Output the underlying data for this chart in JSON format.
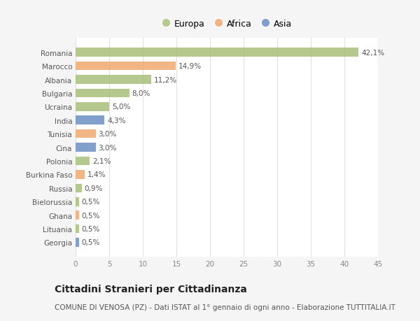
{
  "countries": [
    "Romania",
    "Marocco",
    "Albania",
    "Bulgaria",
    "Ucraina",
    "India",
    "Tunisia",
    "Cina",
    "Polonia",
    "Burkina Faso",
    "Russia",
    "Bielorussia",
    "Ghana",
    "Lituania",
    "Georgia"
  ],
  "values": [
    42.1,
    14.9,
    11.2,
    8.0,
    5.0,
    4.3,
    3.0,
    3.0,
    2.1,
    1.4,
    0.9,
    0.5,
    0.5,
    0.5,
    0.5
  ],
  "labels": [
    "42,1%",
    "14,9%",
    "11,2%",
    "8,0%",
    "5,0%",
    "4,3%",
    "3,0%",
    "3,0%",
    "2,1%",
    "1,4%",
    "0,9%",
    "0,5%",
    "0,5%",
    "0,5%",
    "0,5%"
  ],
  "continents": [
    "Europa",
    "Africa",
    "Europa",
    "Europa",
    "Europa",
    "Asia",
    "Africa",
    "Asia",
    "Europa",
    "Africa",
    "Europa",
    "Europa",
    "Africa",
    "Europa",
    "Asia"
  ],
  "continent_colors": {
    "Europa": "#a8c07a",
    "Africa": "#f0a870",
    "Asia": "#6b8fc4"
  },
  "bg_color": "#f5f5f5",
  "plot_bg_color": "#ffffff",
  "title": "Cittadini Stranieri per Cittadinanza",
  "subtitle": "COMUNE DI VENOSA (PZ) - Dati ISTAT al 1° gennaio di ogni anno - Elaborazione TUTTITALIA.IT",
  "xlim": [
    0,
    45
  ],
  "xticks": [
    0,
    5,
    10,
    15,
    20,
    25,
    30,
    35,
    40,
    45
  ],
  "grid_color": "#e0e0e0",
  "bar_height": 0.65,
  "label_fontsize": 7.5,
  "tick_label_fontsize": 7.5,
  "title_fontsize": 10,
  "subtitle_fontsize": 7.5
}
